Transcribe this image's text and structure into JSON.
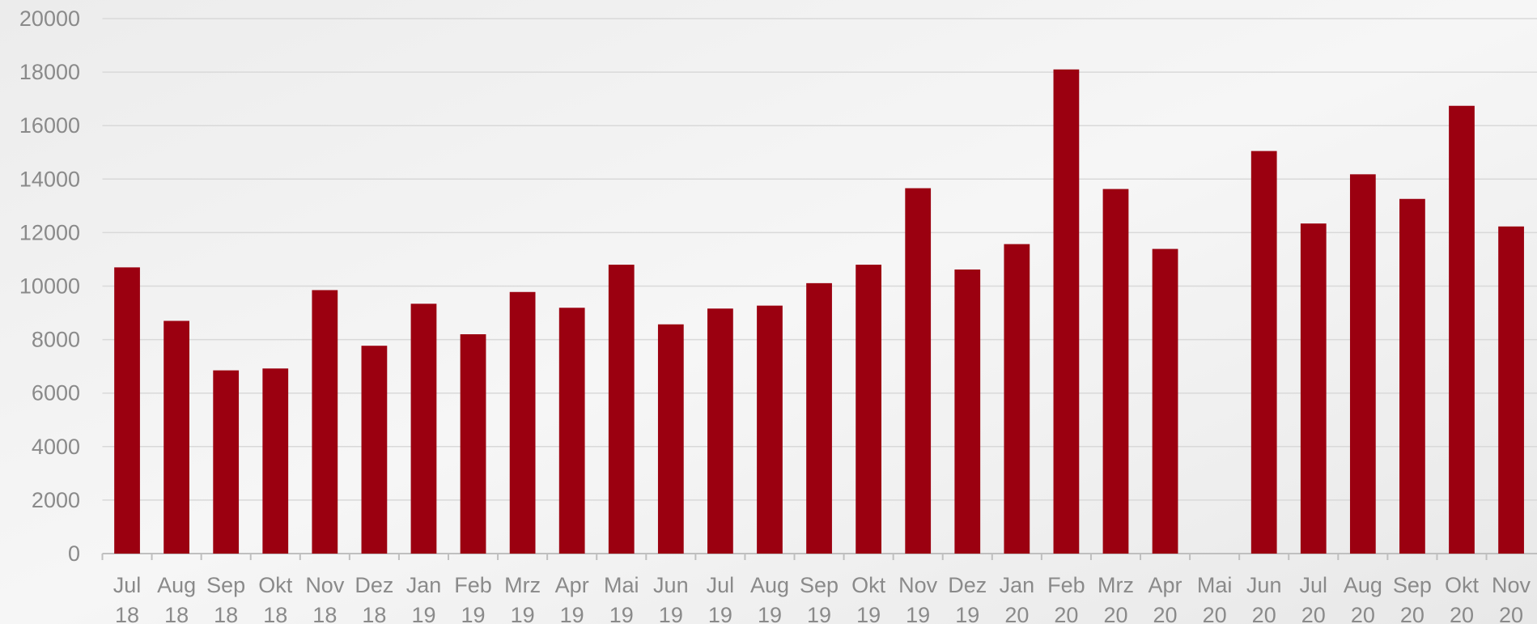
{
  "chart_data": {
    "type": "bar",
    "categories": [
      "Jul 18",
      "Aug 18",
      "Sep 18",
      "Okt 18",
      "Nov 18",
      "Dez 18",
      "Jan 19",
      "Feb 19",
      "Mrz 19",
      "Apr 19",
      "Mai 19",
      "Jun 19",
      "Jul 19",
      "Aug 19",
      "Sep 19",
      "Okt 19",
      "Nov 19",
      "Dez 19",
      "Jan 20",
      "Feb 20",
      "Mrz 20",
      "Apr 20",
      "Mai 20",
      "Jun 20",
      "Jul 20",
      "Aug 20",
      "Sep 20",
      "Okt 20",
      "Nov 20"
    ],
    "values": [
      10700,
      8700,
      6850,
      6920,
      9850,
      7770,
      9340,
      8200,
      9780,
      9190,
      10800,
      8570,
      9160,
      9270,
      10110,
      10800,
      13660,
      10620,
      11570,
      18100,
      13630,
      11390,
      null,
      15050,
      12340,
      14180,
      13260,
      16740,
      12230
    ],
    "color": "#9b0010",
    "ylim": [
      0,
      20000
    ],
    "yticks": [
      0,
      2000,
      4000,
      6000,
      8000,
      10000,
      12000,
      14000,
      16000,
      18000,
      20000
    ],
    "grid": true
  }
}
